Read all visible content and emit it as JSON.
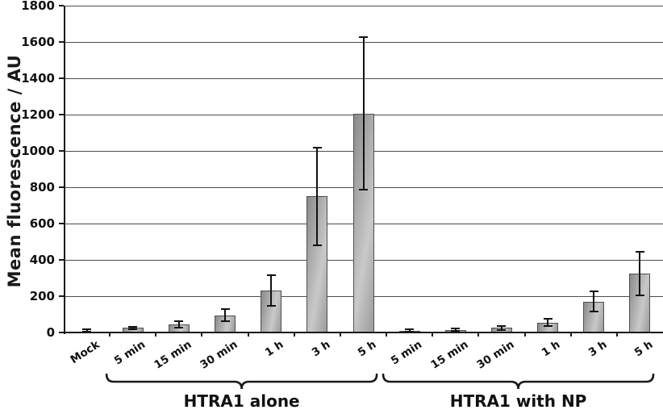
{
  "chart_data": {
    "type": "bar",
    "title": "",
    "xlabel": "",
    "ylabel": "Mean fluorescence / AU",
    "ylim": [
      0,
      1800
    ],
    "ytick_step": 200,
    "grid": true,
    "legend": "none",
    "categories": [
      "Mock",
      "5 min",
      "15 min",
      "30 min",
      "1 h",
      "3 h",
      "5 h",
      "5 min",
      "15 min",
      "30 min",
      "1 h",
      "3 h",
      "5 h"
    ],
    "values": [
      5,
      25,
      45,
      95,
      230,
      750,
      1205,
      8,
      15,
      25,
      55,
      170,
      325
    ],
    "errors": [
      12,
      8,
      18,
      32,
      85,
      270,
      420,
      12,
      6,
      12,
      20,
      55,
      120
    ],
    "groups": [
      {
        "label": "HTRA1 alone",
        "from": 1,
        "to": 6
      },
      {
        "label": "HTRA1 with NP",
        "from": 7,
        "to": 12
      }
    ],
    "style": {
      "bar_fill_dark": "#8a8a8a",
      "bar_fill_light": "#c9c9c9",
      "bar_fill_mid": "#9b9b9b",
      "bar_border": "#4f4f4f",
      "grid_color": "#4d4d4d",
      "axis_color": "#1a1a1a",
      "error_color": "#111111",
      "text_color": "#111111",
      "background": "#ffffff"
    }
  }
}
